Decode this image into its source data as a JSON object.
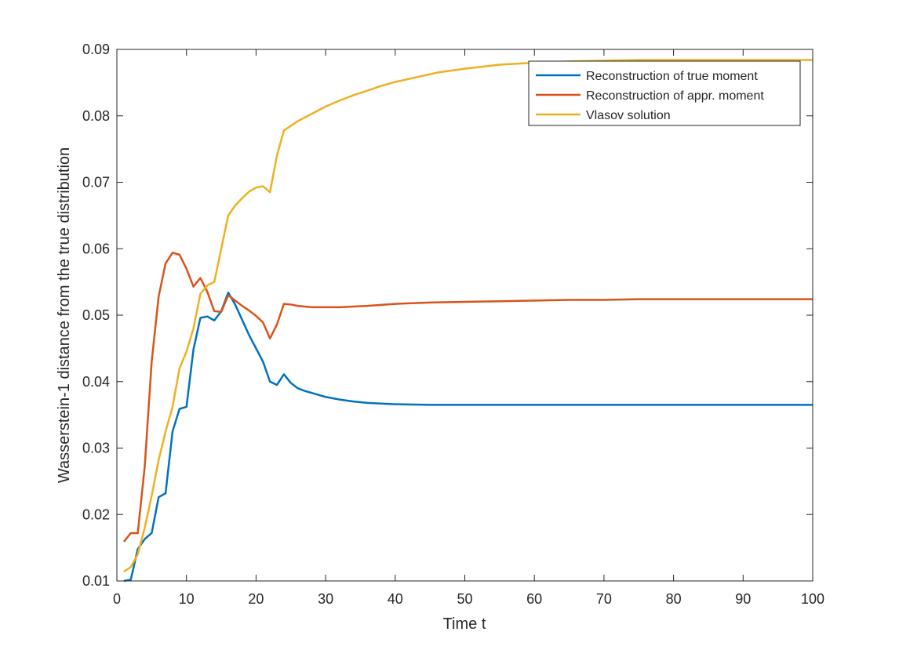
{
  "chart_data": {
    "type": "line",
    "title": "",
    "xlabel": "Time t",
    "ylabel": "Wasserstein-1 distance from the true distribution",
    "xlim": [
      0,
      100
    ],
    "ylim": [
      0.01,
      0.09
    ],
    "xticks": [
      0,
      10,
      20,
      30,
      40,
      50,
      60,
      70,
      80,
      90,
      100
    ],
    "yticks": [
      0.01,
      0.02,
      0.03,
      0.04,
      0.05,
      0.06,
      0.07,
      0.08,
      0.09
    ],
    "xtick_labels": [
      "0",
      "10",
      "20",
      "30",
      "40",
      "50",
      "60",
      "70",
      "80",
      "90",
      "100"
    ],
    "ytick_labels": [
      "0.01",
      "0.02",
      "0.03",
      "0.04",
      "0.05",
      "0.06",
      "0.07",
      "0.08",
      "0.09"
    ],
    "grid": false,
    "legend_position": "top-right",
    "series": [
      {
        "name": "Reconstruction of true moment",
        "color": "#0072BD",
        "x": [
          1,
          2,
          3,
          4,
          5,
          6,
          7,
          8,
          9,
          10,
          11,
          12,
          13,
          14,
          15,
          16,
          17,
          18,
          19,
          20,
          21,
          22,
          23,
          24,
          25,
          26,
          27,
          28,
          30,
          32,
          34,
          36,
          38,
          40,
          45,
          50,
          55,
          60,
          65,
          70,
          75,
          80,
          85,
          90,
          95,
          100
        ],
        "y": [
          0.01,
          0.0102,
          0.0148,
          0.0163,
          0.0172,
          0.0226,
          0.0232,
          0.0325,
          0.0359,
          0.0362,
          0.0448,
          0.0496,
          0.0498,
          0.0492,
          0.0506,
          0.0534,
          0.0516,
          0.0493,
          0.047,
          0.045,
          0.043,
          0.04,
          0.0395,
          0.0411,
          0.0398,
          0.039,
          0.0386,
          0.0383,
          0.0377,
          0.0373,
          0.037,
          0.0368,
          0.0367,
          0.0366,
          0.0365,
          0.0365,
          0.0365,
          0.0365,
          0.0365,
          0.0365,
          0.0365,
          0.0365,
          0.0365,
          0.0365,
          0.0365,
          0.0365
        ]
      },
      {
        "name": "Reconstruction of appr. moment",
        "color": "#D95319",
        "x": [
          1,
          2,
          3,
          4,
          5,
          6,
          7,
          8,
          9,
          10,
          11,
          12,
          13,
          14,
          15,
          16,
          17,
          18,
          19,
          20,
          21,
          22,
          23,
          24,
          25,
          26,
          28,
          30,
          32,
          34,
          36,
          40,
          45,
          50,
          55,
          60,
          65,
          70,
          75,
          80,
          85,
          90,
          95,
          100
        ],
        "y": [
          0.0159,
          0.0172,
          0.0172,
          0.0272,
          0.043,
          0.0528,
          0.0578,
          0.0594,
          0.0591,
          0.057,
          0.0543,
          0.0556,
          0.0535,
          0.0506,
          0.0505,
          0.053,
          0.0522,
          0.0514,
          0.0507,
          0.0499,
          0.0489,
          0.0465,
          0.0486,
          0.0517,
          0.0516,
          0.0514,
          0.0512,
          0.0512,
          0.0512,
          0.0513,
          0.0514,
          0.0517,
          0.0519,
          0.052,
          0.0521,
          0.0522,
          0.0523,
          0.0523,
          0.0524,
          0.0524,
          0.0524,
          0.0524,
          0.0524,
          0.0524
        ]
      },
      {
        "name": "Vlasov solution",
        "color": "#EDB120",
        "x": [
          1,
          2,
          3,
          4,
          5,
          6,
          7,
          8,
          9,
          10,
          11,
          12,
          13,
          14,
          15,
          16,
          17,
          18,
          19,
          20,
          21,
          22,
          23,
          24,
          25,
          26,
          28,
          30,
          32,
          34,
          36,
          38,
          40,
          43,
          46,
          50,
          55,
          60,
          65,
          70,
          75,
          80,
          85,
          90,
          95,
          100
        ],
        "y": [
          0.0114,
          0.0121,
          0.014,
          0.018,
          0.0228,
          0.0282,
          0.0325,
          0.0362,
          0.042,
          0.0445,
          0.048,
          0.0532,
          0.0545,
          0.055,
          0.06,
          0.065,
          0.0665,
          0.0676,
          0.0686,
          0.0692,
          0.0694,
          0.0685,
          0.074,
          0.0778,
          0.0785,
          0.0792,
          0.0803,
          0.0814,
          0.0823,
          0.0831,
          0.0838,
          0.0845,
          0.0851,
          0.0858,
          0.0865,
          0.0871,
          0.0877,
          0.088,
          0.0882,
          0.0883,
          0.0884,
          0.0884,
          0.0884,
          0.0884,
          0.0884,
          0.0884
        ]
      }
    ]
  }
}
